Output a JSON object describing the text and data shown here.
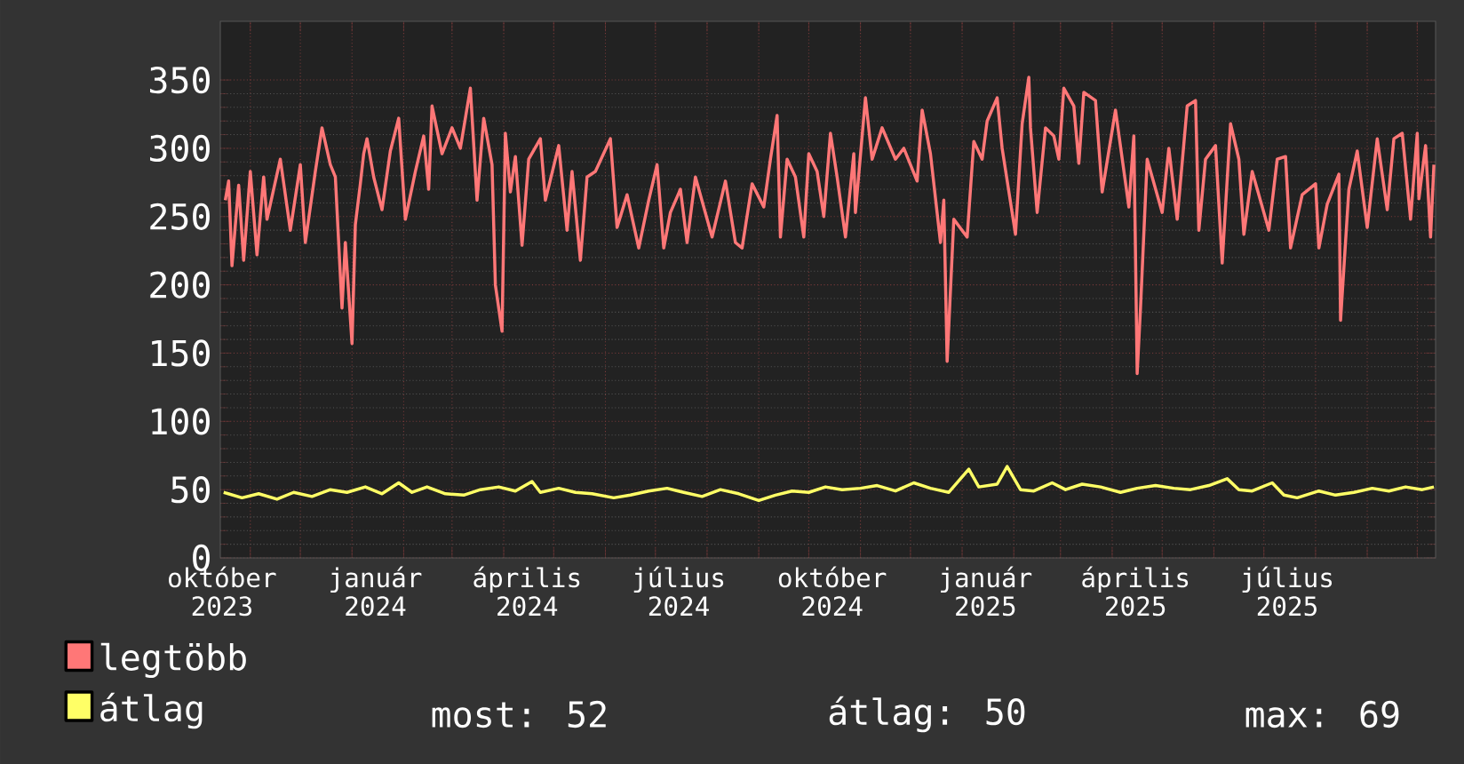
{
  "chart_data": {
    "type": "line",
    "xlim": [
      "2023-10-14",
      "2025-10-12"
    ],
    "xticks": [
      {
        "value": "2023-10-15",
        "label": "október 2023"
      },
      {
        "value": "2024-01-15",
        "label": "január 2024"
      },
      {
        "value": "2024-04-15",
        "label": "április 2024"
      },
      {
        "value": "2024-07-15",
        "label": "július 2024"
      },
      {
        "value": "2024-10-15",
        "label": "október 2024"
      },
      {
        "value": "2025-01-15",
        "label": "január 2025"
      },
      {
        "value": "2025-04-15",
        "label": "április 2025"
      },
      {
        "value": "2025-07-15",
        "label": "július 2025"
      },
      {
        "value": "2023-11-01",
        "label": null
      },
      {
        "value": "2023-12-01",
        "label": null
      },
      {
        "value": "2024-01-01",
        "label": null
      },
      {
        "value": "2024-02-01",
        "label": null
      },
      {
        "value": "2024-03-01",
        "label": null
      },
      {
        "value": "2024-04-01",
        "label": null
      },
      {
        "value": "2024-05-01",
        "label": null
      },
      {
        "value": "2024-06-01",
        "label": null
      },
      {
        "value": "2024-07-01",
        "label": null
      },
      {
        "value": "2024-08-01",
        "label": null
      },
      {
        "value": "2024-09-01",
        "label": null
      },
      {
        "value": "2024-10-01",
        "label": null
      },
      {
        "value": "2024-11-01",
        "label": null
      },
      {
        "value": "2024-12-01",
        "label": null
      },
      {
        "value": "2025-01-01",
        "label": null
      },
      {
        "value": "2025-02-01",
        "label": null
      },
      {
        "value": "2025-03-01",
        "label": null
      },
      {
        "value": "2025-04-01",
        "label": null
      },
      {
        "value": "2025-05-01",
        "label": null
      },
      {
        "value": "2025-06-01",
        "label": null
      },
      {
        "value": "2025-07-01",
        "label": null
      },
      {
        "value": "2025-08-01",
        "label": null
      },
      {
        "value": "2025-09-01",
        "label": null
      },
      {
        "value": "2025-10-01",
        "label": null
      }
    ],
    "ylim": [
      0,
      393
    ],
    "yticks": [
      0,
      50,
      100,
      150,
      200,
      250,
      300,
      350
    ],
    "grid": true,
    "legend": "bottom",
    "series": [
      {
        "name": "legtöbb",
        "color": "#ff7777",
        "x": [
          "2023-10-17",
          "2023-10-19",
          "2023-10-21",
          "2023-10-25",
          "2023-10-28",
          "2023-11-01",
          "2023-11-05",
          "2023-11-09",
          "2023-11-11",
          "2023-11-19",
          "2023-11-25",
          "2023-12-01",
          "2023-12-04",
          "2023-12-10",
          "2023-12-14",
          "2023-12-19",
          "2023-12-22",
          "2023-12-26",
          "2023-12-28",
          "2024-01-01",
          "2024-01-03",
          "2024-01-06",
          "2024-01-08",
          "2024-01-10",
          "2024-01-14",
          "2024-01-19",
          "2024-01-24",
          "2024-01-29",
          "2024-02-02",
          "2024-02-08",
          "2024-02-13",
          "2024-02-16",
          "2024-02-18",
          "2024-02-24",
          "2024-03-01",
          "2024-03-06",
          "2024-03-12",
          "2024-03-16",
          "2024-03-20",
          "2024-03-25",
          "2024-03-27",
          "2024-03-31",
          "2024-04-02",
          "2024-04-05",
          "2024-04-08",
          "2024-04-12",
          "2024-04-16",
          "2024-04-23",
          "2024-04-26",
          "2024-05-04",
          "2024-05-09",
          "2024-05-12",
          "2024-05-17",
          "2024-05-21",
          "2024-05-26",
          "2024-06-04",
          "2024-06-08",
          "2024-06-14",
          "2024-06-21",
          "2024-06-27",
          "2024-07-02",
          "2024-07-06",
          "2024-07-10",
          "2024-07-16",
          "2024-07-20",
          "2024-07-25",
          "2024-08-04",
          "2024-08-12",
          "2024-08-18",
          "2024-08-22",
          "2024-08-28",
          "2024-09-04",
          "2024-09-08",
          "2024-09-12",
          "2024-09-14",
          "2024-09-18",
          "2024-09-23",
          "2024-09-28",
          "2024-10-01",
          "2024-10-06",
          "2024-10-10",
          "2024-10-14",
          "2024-10-18",
          "2024-10-23",
          "2024-10-28",
          "2024-10-29",
          "2024-11-04",
          "2024-11-08",
          "2024-11-14",
          "2024-11-22",
          "2024-11-27",
          "2024-12-05",
          "2024-12-08",
          "2024-12-13",
          "2024-12-19",
          "2024-12-21",
          "2024-12-23",
          "2024-12-27",
          "2025-01-04",
          "2025-01-08",
          "2025-01-13",
          "2025-01-16",
          "2025-01-22",
          "2025-01-25",
          "2025-02-02",
          "2025-02-06",
          "2025-02-10",
          "2025-02-11",
          "2025-02-15",
          "2025-02-20",
          "2025-02-25",
          "2025-02-28",
          "2025-03-03",
          "2025-03-09",
          "2025-03-12",
          "2025-03-15",
          "2025-03-22",
          "2025-03-26",
          "2025-04-03",
          "2025-04-11",
          "2025-04-14",
          "2025-04-16",
          "2025-04-18",
          "2025-04-22",
          "2025-05-01",
          "2025-05-05",
          "2025-05-10",
          "2025-05-16",
          "2025-05-21",
          "2025-05-23",
          "2025-05-27",
          "2025-06-02",
          "2025-06-06",
          "2025-06-11",
          "2025-06-16",
          "2025-06-19",
          "2025-06-24",
          "2025-07-04",
          "2025-07-09",
          "2025-07-14",
          "2025-07-17",
          "2025-07-24",
          "2025-08-01",
          "2025-08-03",
          "2025-08-08",
          "2025-08-15",
          "2025-08-16",
          "2025-08-21",
          "2025-08-26",
          "2025-09-01",
          "2025-09-07",
          "2025-09-13",
          "2025-09-17",
          "2025-09-22",
          "2025-09-27",
          "2025-10-01",
          "2025-10-02",
          "2025-10-06",
          "2025-10-09",
          "2025-10-11"
        ],
        "values": [
          262,
          276,
          214,
          273,
          218,
          283,
          222,
          279,
          248,
          292,
          240,
          288,
          231,
          283,
          315,
          288,
          279,
          183,
          231,
          157,
          244,
          274,
          296,
          307,
          279,
          255,
          298,
          322,
          248,
          283,
          309,
          270,
          331,
          296,
          315,
          300,
          344,
          262,
          322,
          288,
          200,
          166,
          311,
          268,
          294,
          229,
          292,
          307,
          262,
          302,
          240,
          283,
          218,
          279,
          283,
          307,
          242,
          266,
          227,
          262,
          288,
          227,
          253,
          270,
          231,
          279,
          235,
          276,
          231,
          227,
          274,
          257,
          292,
          324,
          235,
          292,
          279,
          235,
          296,
          283,
          250,
          311,
          279,
          235,
          296,
          253,
          337,
          292,
          315,
          292,
          300,
          276,
          328,
          296,
          231,
          262,
          144,
          248,
          235,
          305,
          292,
          320,
          337,
          300,
          237,
          318,
          352,
          315,
          253,
          315,
          309,
          292,
          344,
          331,
          289,
          341,
          335,
          268,
          328,
          257,
          309,
          135,
          183,
          292,
          253,
          300,
          248,
          331,
          335,
          240,
          292,
          302,
          216,
          318,
          292,
          237,
          283,
          240,
          292,
          294,
          227,
          266,
          274,
          227,
          259,
          281,
          174,
          270,
          298,
          242,
          307,
          255,
          307,
          311,
          248,
          311,
          263,
          302,
          235,
          288
        ]
      },
      {
        "name": "átlag",
        "color": "#ffff66",
        "x": [
          "2023-10-16",
          "2023-10-27",
          "2023-11-06",
          "2023-11-17",
          "2023-11-27",
          "2023-12-08",
          "2023-12-19",
          "2023-12-29",
          "2024-01-09",
          "2024-01-19",
          "2024-01-29",
          "2024-02-06",
          "2024-02-15",
          "2024-02-26",
          "2024-03-08",
          "2024-03-18",
          "2024-03-29",
          "2024-04-08",
          "2024-04-18",
          "2024-04-23",
          "2024-05-04",
          "2024-05-14",
          "2024-05-24",
          "2024-06-06",
          "2024-06-16",
          "2024-06-27",
          "2024-07-08",
          "2024-07-18",
          "2024-07-29",
          "2024-08-09",
          "2024-08-20",
          "2024-09-01",
          "2024-09-11",
          "2024-09-21",
          "2024-10-01",
          "2024-10-11",
          "2024-10-21",
          "2024-11-01",
          "2024-11-11",
          "2024-11-22",
          "2024-12-03",
          "2024-12-13",
          "2024-12-24",
          "2025-01-05",
          "2025-01-11",
          "2025-01-22",
          "2025-01-28",
          "2025-02-05",
          "2025-02-13",
          "2025-02-24",
          "2025-03-04",
          "2025-03-14",
          "2025-03-25",
          "2025-04-06",
          "2025-04-16",
          "2025-04-27",
          "2025-05-08",
          "2025-05-18",
          "2025-05-29",
          "2025-06-09",
          "2025-06-16",
          "2025-06-24",
          "2025-07-06",
          "2025-07-13",
          "2025-07-21",
          "2025-08-03",
          "2025-08-13",
          "2025-08-24",
          "2025-09-04",
          "2025-09-14",
          "2025-09-24",
          "2025-10-04",
          "2025-10-11"
        ],
        "values": [
          48,
          44,
          47,
          43,
          48,
          45,
          50,
          48,
          52,
          47,
          55,
          48,
          52,
          47,
          46,
          50,
          52,
          49,
          56,
          48,
          51,
          48,
          47,
          44,
          46,
          49,
          51,
          48,
          45,
          50,
          47,
          42,
          46,
          49,
          48,
          52,
          50,
          51,
          53,
          49,
          55,
          51,
          48,
          65,
          52,
          54,
          67,
          50,
          49,
          55,
          50,
          54,
          52,
          48,
          51,
          53,
          51,
          50,
          53,
          58,
          50,
          49,
          55,
          46,
          44,
          49,
          46,
          48,
          51,
          49,
          52,
          50,
          52
        ]
      }
    ],
    "annotations": [
      "most: 52",
      "átlag: 50",
      "max: 69"
    ]
  }
}
